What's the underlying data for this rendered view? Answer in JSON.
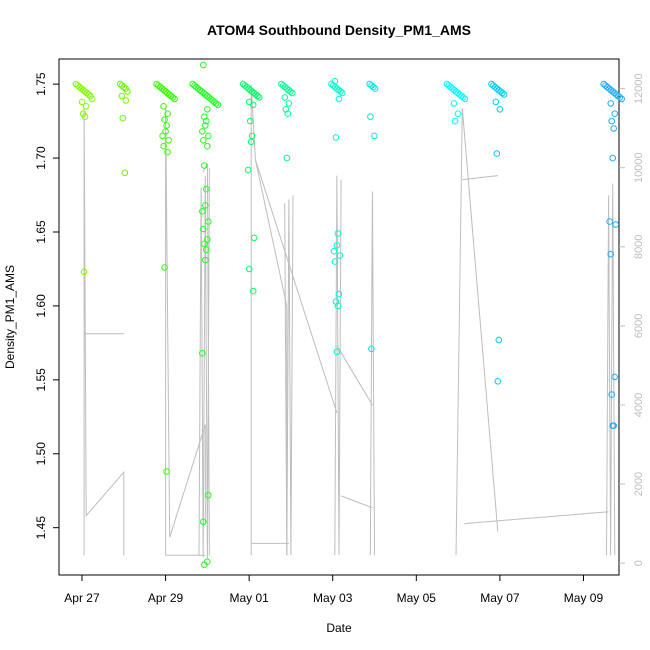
{
  "chart_data": {
    "type": "scatter",
    "title": "ATOM4 Southbound Density_PM1_AMS",
    "xlabel": "Date",
    "ylabel": "Density_PM1_AMS",
    "x_unit": "days since Apr 27",
    "xlim": [
      -0.55,
      12.85
    ],
    "ylim": [
      1.418,
      1.767
    ],
    "y_ticks": [
      1.45,
      1.5,
      1.55,
      1.6,
      1.65,
      1.7,
      1.75
    ],
    "y_tick_labels": [
      "1.45",
      "1.50",
      "1.55",
      "1.60",
      "1.65",
      "1.70",
      "1.75"
    ],
    "x_ticks": [
      0,
      2,
      4,
      6,
      8,
      10,
      12
    ],
    "x_tick_labels": [
      "Apr 27",
      "Apr 29",
      "May 01",
      "May 03",
      "May 05",
      "May 07",
      "May 09"
    ],
    "secondary_ylim": [
      -300,
      12750
    ],
    "secondary_y_ticks": [
      0,
      2000,
      4000,
      6000,
      8000,
      10000,
      12000
    ],
    "secondary_y_tick_labels": [
      "0",
      "2000",
      "4000",
      "6000",
      "8000",
      "10000",
      "12000"
    ],
    "point_colors": [
      "#80ff00",
      "#66ff00",
      "#33ff00",
      "#22ff22",
      "#00ff66",
      "#00ff99",
      "#00ffcc",
      "#00e6e6",
      "#00ffff",
      "#00ccff",
      "#22aaff"
    ],
    "point_clusters": [
      {
        "x": 0.05,
        "color_index": 0,
        "top_values": [
          1.75,
          1.749,
          1.748,
          1.747,
          1.746,
          1.745,
          1.744,
          1.743,
          1.742,
          1.74
        ],
        "values": [
          1.738,
          1.735,
          1.73,
          1.728,
          1.623
        ]
      },
      {
        "x": 1.0,
        "color_index": 1,
        "top_values": [
          1.75,
          1.749,
          1.748,
          1.747,
          1.745
        ],
        "values": [
          1.742,
          1.739,
          1.727,
          1.69
        ]
      },
      {
        "x": 2.0,
        "color_index": 2,
        "top_values": [
          1.75,
          1.749,
          1.748,
          1.747,
          1.746,
          1.745,
          1.744,
          1.743,
          1.742,
          1.741,
          1.74
        ],
        "values": [
          1.735,
          1.73,
          1.726,
          1.722,
          1.718,
          1.715,
          1.712,
          1.708,
          1.704,
          1.626,
          1.488
        ]
      },
      {
        "x": 2.95,
        "color_index": 3,
        "top_values": [
          1.75,
          1.749,
          1.748,
          1.747,
          1.746,
          1.745,
          1.744,
          1.743,
          1.742,
          1.741,
          1.74,
          1.739,
          1.738,
          1.737,
          1.736
        ],
        "values": [
          1.763,
          1.733,
          1.728,
          1.725,
          1.722,
          1.718,
          1.715,
          1.712,
          1.708,
          1.695,
          1.679,
          1.668,
          1.664,
          1.657,
          1.652,
          1.645,
          1.642,
          1.638,
          1.631,
          1.568,
          1.472,
          1.454,
          1.427,
          1.425
        ]
      },
      {
        "x": 4.05,
        "color_index": 4,
        "top_values": [
          1.75,
          1.749,
          1.748,
          1.747,
          1.746,
          1.745,
          1.744,
          1.743,
          1.742,
          1.741
        ],
        "values": [
          1.738,
          1.736,
          1.725,
          1.715,
          1.711,
          1.692,
          1.646,
          1.625,
          1.61
        ]
      },
      {
        "x": 4.9,
        "color_index": 5,
        "top_values": [
          1.75,
          1.749,
          1.748,
          1.747,
          1.746,
          1.745,
          1.744
        ],
        "values": [
          1.741,
          1.737,
          1.733,
          1.73,
          1.7
        ]
      },
      {
        "x": 6.1,
        "color_index": 6,
        "top_values": [
          1.75,
          1.749,
          1.748,
          1.747,
          1.746,
          1.745,
          1.744
        ],
        "values": [
          1.752,
          1.74,
          1.714,
          1.649,
          1.641,
          1.637,
          1.634,
          1.63,
          1.608,
          1.603,
          1.6,
          1.569
        ]
      },
      {
        "x": 6.95,
        "color_index": 7,
        "top_values": [
          1.75,
          1.749,
          1.748,
          1.747
        ],
        "values": [
          1.728,
          1.715,
          1.571
        ]
      },
      {
        "x": 8.95,
        "color_index": 8,
        "top_values": [
          1.75,
          1.749,
          1.748,
          1.747,
          1.746,
          1.745,
          1.744,
          1.743,
          1.742,
          1.741,
          1.74
        ],
        "values": [
          1.737,
          1.73,
          1.725
        ]
      },
      {
        "x": 9.95,
        "color_index": 9,
        "top_values": [
          1.75,
          1.749,
          1.748,
          1.747,
          1.746,
          1.745,
          1.744,
          1.743
        ],
        "values": [
          1.738,
          1.733,
          1.703,
          1.577,
          1.549
        ]
      },
      {
        "x": 12.7,
        "color_index": 10,
        "top_values": [
          1.75,
          1.749,
          1.748,
          1.747,
          1.746,
          1.745,
          1.744,
          1.743,
          1.742,
          1.741,
          1.74
        ],
        "values": [
          1.737,
          1.73,
          1.725,
          1.72,
          1.7,
          1.657,
          1.655,
          1.635,
          1.552,
          1.54,
          1.519,
          1.519
        ]
      }
    ],
    "secondary_series": {
      "name": "gray trace",
      "color": "#bdbdbd",
      "segments": [
        {
          "x": [
            0.05,
            0.05,
            0.1,
            1.0,
            1.0
          ],
          "y": [
            200,
            11500,
            1200,
            2300,
            200
          ]
        },
        {
          "x": [
            0.05,
            0.05,
            1.0
          ],
          "y": [
            5800,
            5800,
            5800
          ]
        },
        {
          "x": [
            2.0,
            2.0,
            2.1,
            2.95,
            2.95
          ],
          "y": [
            200,
            11500,
            650,
            3500,
            1000
          ]
        },
        {
          "x": [
            2.0,
            2.95
          ],
          "y": [
            200,
            200
          ]
        },
        {
          "x": [
            2.8,
            2.85,
            2.9,
            2.95,
            3.0,
            3.05
          ],
          "y": [
            200,
            9500,
            150,
            9800,
            100,
            10000
          ]
        },
        {
          "x": [
            2.9,
            3.0,
            3.05
          ],
          "y": [
            9900,
            10100,
            200
          ]
        },
        {
          "x": [
            4.05,
            4.05,
            4.15,
            4.9,
            4.9
          ],
          "y": [
            200,
            12100,
            10200,
            6500,
            200
          ]
        },
        {
          "x": [
            4.05,
            4.95
          ],
          "y": [
            500,
            500
          ]
        },
        {
          "x": [
            4.85,
            4.9,
            4.95,
            5.0,
            5.05
          ],
          "y": [
            9100,
            200,
            9200,
            200,
            9300
          ]
        },
        {
          "x": [
            4.15,
            6.1
          ],
          "y": [
            10200,
            3800
          ]
        },
        {
          "x": [
            6.05,
            6.1,
            6.15,
            6.2
          ],
          "y": [
            200,
            9800,
            200,
            9700
          ]
        },
        {
          "x": [
            6.1,
            6.95
          ],
          "y": [
            5500,
            4000
          ]
        },
        {
          "x": [
            6.2,
            6.95
          ],
          "y": [
            1700,
            1400
          ]
        },
        {
          "x": [
            6.9,
            6.95,
            7.0
          ],
          "y": [
            200,
            9400,
            200
          ]
        },
        {
          "x": [
            8.95,
            9.1,
            9.95
          ],
          "y": [
            200,
            11500,
            800
          ]
        },
        {
          "x": [
            9.1,
            9.95
          ],
          "y": [
            9700,
            9800
          ]
        },
        {
          "x": [
            9.15,
            12.6
          ],
          "y": [
            1000,
            1300
          ]
        },
        {
          "x": [
            12.55,
            12.6,
            12.65,
            12.7,
            12.75
          ],
          "y": [
            200,
            9300,
            200,
            9600,
            200
          ]
        }
      ]
    }
  }
}
